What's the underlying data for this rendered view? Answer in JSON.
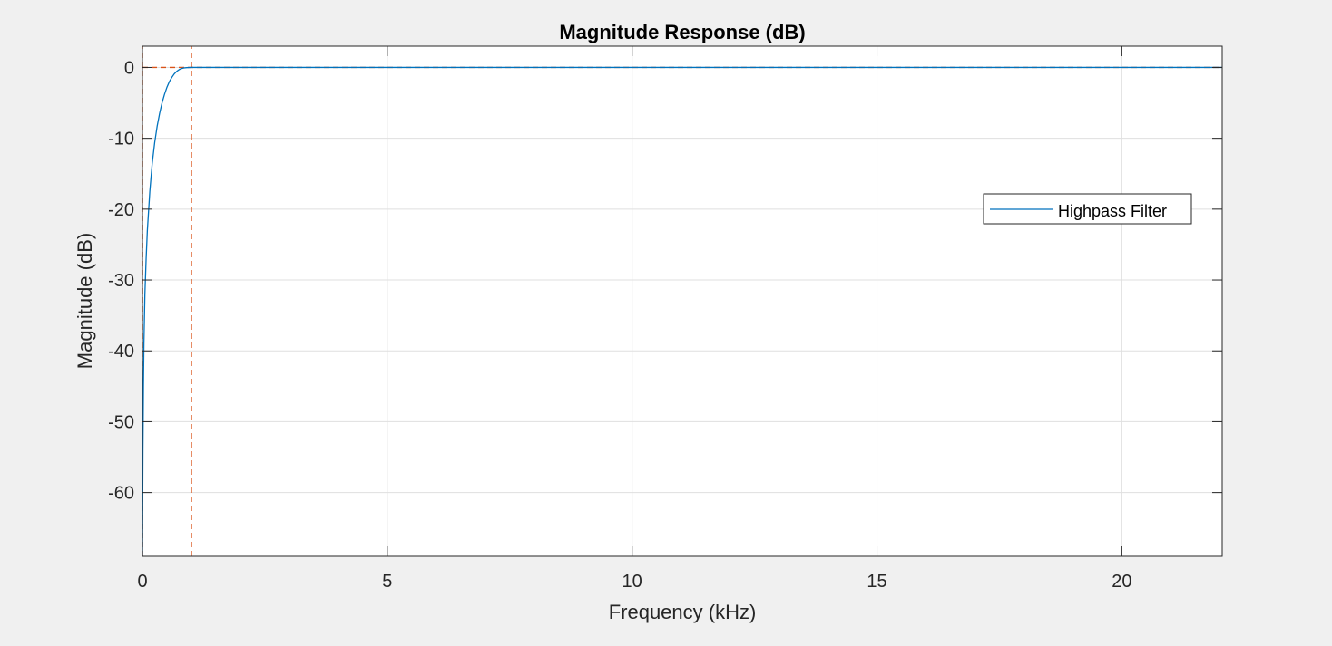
{
  "chart_data": {
    "type": "line",
    "title": "Magnitude Response (dB)",
    "xlabel": "Frequency (kHz)",
    "ylabel": "Magnitude (dB)",
    "xlim": [
      0,
      22.05
    ],
    "ylim": [
      -69,
      3
    ],
    "xticks": [
      0,
      5,
      10,
      15,
      20
    ],
    "yticks": [
      0,
      -10,
      -20,
      -30,
      -40,
      -50,
      -60
    ],
    "grid": true,
    "legend": {
      "placement": "right",
      "entries": [
        "Highpass Filter"
      ]
    },
    "colors": {
      "series": "#0072bd",
      "mask": "#d95319",
      "background": "#ffffff",
      "grid": "#dfdfdf"
    },
    "series": [
      {
        "name": "Highpass Filter",
        "x": [
          0.0,
          0.005,
          0.01,
          0.02,
          0.03,
          0.05,
          0.075,
          0.1,
          0.15,
          0.2,
          0.25,
          0.3,
          0.35,
          0.4,
          0.45,
          0.5,
          0.55,
          0.6,
          0.65,
          0.7,
          0.75,
          0.8,
          0.85,
          0.9,
          0.95,
          1.0,
          1.1,
          2.0,
          22.05
        ],
        "y": [
          -69,
          -62,
          -54,
          -45,
          -39,
          -32,
          -27,
          -23,
          -17.5,
          -13.5,
          -10.6,
          -8.3,
          -6.5,
          -5.0,
          -3.8,
          -2.8,
          -2.0,
          -1.4,
          -0.9,
          -0.55,
          -0.3,
          -0.15,
          -0.07,
          -0.03,
          -0.01,
          0,
          0,
          0,
          0
        ]
      }
    ],
    "mask_lines": [
      {
        "x": [
          0,
          0
        ],
        "y": [
          -69,
          3
        ]
      },
      {
        "x": [
          0,
          22.05
        ],
        "y": [
          0,
          0
        ]
      },
      {
        "x": [
          1.0,
          1.0
        ],
        "y": [
          -69,
          3
        ]
      }
    ]
  }
}
